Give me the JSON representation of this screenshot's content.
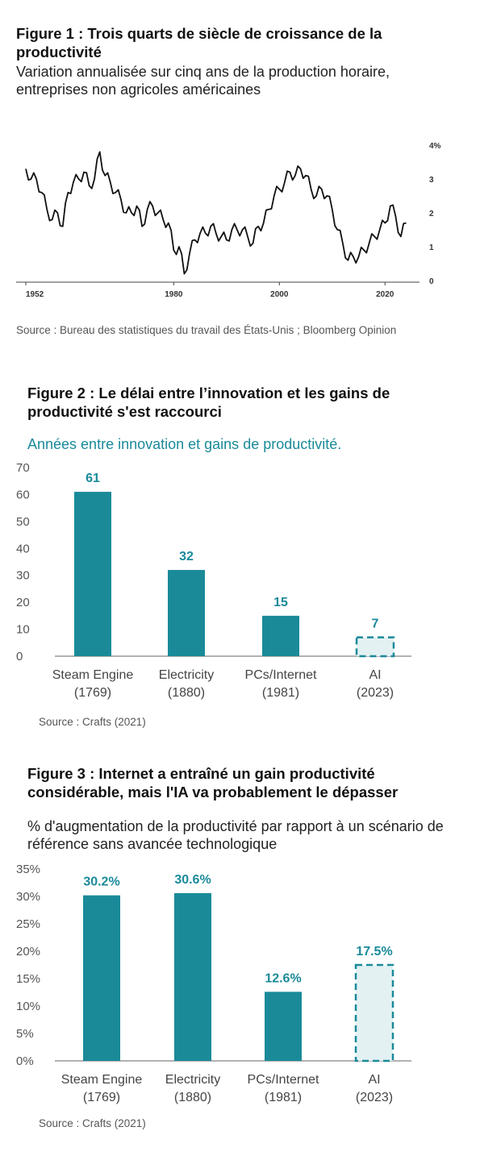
{
  "colors": {
    "teal": "#1a8a99",
    "teal_light": "#e3f1f3",
    "line": "#111111",
    "axis": "#999999",
    "tick_text": "#555555"
  },
  "fig1": {
    "title": "Figure 1 : Trois quarts de siècle de croissance de la productivité",
    "subtitle": "Variation annualisée sur cinq ans de la production horaire, entreprises non agricoles américaines",
    "source": "Source : Bureau des statistiques du travail des États-Unis ; Bloomberg Opinion"
  },
  "fig2": {
    "title": "Figure 2 : Le délai entre l’innovation et les gains de productivité s'est raccourci",
    "subtitle": "Années entre innovation et gains de productivité.",
    "source": "Source : Crafts (2021)"
  },
  "fig3": {
    "title": "Figure 3 : Internet a entraîné un gain productivité considérable, mais l'IA va probablement le dépasser",
    "subtitle": "% d'augmentation de la productivité par rapport à un scénario de référence sans avancée technologique",
    "source": "Source : Crafts (2021)"
  },
  "chart_data": [
    {
      "type": "line",
      "title": "Figure 1 : Trois quarts de siècle de croissance de la productivité",
      "xlabel": "",
      "ylabel": "",
      "x_ticks": [
        "1952",
        "1980",
        "2000",
        "2020"
      ],
      "y_ticks": [
        "4%",
        "3",
        "2",
        "1",
        "0"
      ],
      "xlim": [
        1952,
        2025
      ],
      "ylim": [
        0,
        4
      ],
      "grid": false,
      "series": [
        {
          "x": [
            1952,
            1953,
            1954,
            1955,
            1956,
            1957,
            1958,
            1959,
            1960,
            1961,
            1962,
            1963,
            1964,
            1965,
            1966,
            1967,
            1968,
            1969,
            1970,
            1971,
            1972,
            1973,
            1974,
            1975,
            1976,
            1977,
            1978,
            1979,
            1980,
            1981,
            1982,
            1983,
            1984,
            1985,
            1986,
            1987,
            1988,
            1989,
            1990,
            1991,
            1992,
            1993,
            1994,
            1995,
            1996,
            1997,
            1998,
            1999,
            2000,
            2001,
            2002,
            2003,
            2004,
            2005,
            2006,
            2007,
            2008,
            2009,
            2010,
            2011,
            2012,
            2013,
            2014,
            2015,
            2016,
            2017,
            2018,
            2019,
            2020,
            2021,
            2022,
            2023,
            2024
          ],
          "y": [
            3.3,
            3.0,
            3.0,
            2.6,
            2.1,
            1.8,
            2.0,
            1.6,
            2.6,
            2.9,
            3.0,
            3.2,
            2.8,
            3.0,
            3.8,
            3.1,
            2.9,
            2.6,
            2.4,
            2.0,
            2.0,
            2.2,
            1.6,
            2.1,
            2.2,
            2.0,
            1.8,
            1.7,
            0.9,
            1.0,
            0.2,
            0.8,
            1.2,
            1.4,
            1.4,
            1.6,
            1.4,
            1.3,
            1.2,
            1.5,
            1.5,
            1.5,
            1.3,
            1.1,
            1.6,
            1.7,
            2.1,
            2.5,
            2.7,
            2.9,
            3.2,
            3.1,
            3.3,
            3.1,
            2.7,
            2.5,
            2.7,
            2.5,
            2.1,
            1.5,
            1.1,
            0.6,
            0.7,
            0.7,
            0.9,
            1.1,
            1.3,
            1.5,
            1.7,
            2.2,
            1.9,
            1.3,
            1.7
          ]
        }
      ]
    },
    {
      "type": "bar",
      "title": "Figure 2 : Le délai entre l’innovation et les gains de productivité s'est raccourci",
      "categories": [
        "Steam Engine (1769)",
        "Electricity (1880)",
        "PCs/Internet (1981)",
        "AI (2023)"
      ],
      "category_lines": [
        [
          "Steam Engine",
          "(1769)"
        ],
        [
          "Electricity",
          "(1880)"
        ],
        [
          "PCs/Internet",
          "(1981)"
        ],
        [
          "AI",
          "(2023)"
        ]
      ],
      "values": [
        61,
        32,
        15,
        7
      ],
      "value_labels": [
        "61",
        "32",
        "15",
        "7"
      ],
      "styles": [
        "solid",
        "solid",
        "solid",
        "dashed"
      ],
      "ylim": [
        0,
        70
      ],
      "y_ticks": [
        0,
        10,
        20,
        30,
        40,
        50,
        60,
        70
      ],
      "y_tick_labels": [
        "0",
        "10",
        "20",
        "30",
        "40",
        "50",
        "60",
        "70"
      ],
      "grid": false
    },
    {
      "type": "bar",
      "title": "Figure 3 : Internet a entraîné un gain productivité considérable, mais l'IA va probablement le dépasser",
      "categories": [
        "Steam Engine (1769)",
        "Electricity (1880)",
        "PCs/Internet (1981)",
        "AI (2023)"
      ],
      "category_lines": [
        [
          "Steam Engine",
          "(1769)"
        ],
        [
          "Electricity",
          "(1880)"
        ],
        [
          "PCs/Internet",
          "(1981)"
        ],
        [
          "AI",
          "(2023)"
        ]
      ],
      "values": [
        30.2,
        30.6,
        12.6,
        17.5
      ],
      "value_labels": [
        "30.2%",
        "30.6%",
        "12.6%",
        "17.5%"
      ],
      "styles": [
        "solid",
        "solid",
        "solid",
        "dashed"
      ],
      "ylim": [
        0,
        35
      ],
      "y_ticks": [
        0,
        5,
        10,
        15,
        20,
        25,
        30,
        35
      ],
      "y_tick_labels": [
        "0%",
        "5%",
        "10%",
        "15%",
        "20%",
        "25%",
        "30%",
        "35%"
      ],
      "grid": false
    }
  ]
}
